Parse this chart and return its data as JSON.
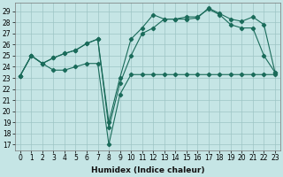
{
  "xlabel": "Humidex (Indice chaleur)",
  "background_color": "#c5e5e5",
  "grid_color": "#9dc5c5",
  "line_color": "#1a6b5a",
  "xlim": [
    -0.5,
    23.5
  ],
  "ylim": [
    16.5,
    29.8
  ],
  "yticks": [
    17,
    18,
    19,
    20,
    21,
    22,
    23,
    24,
    25,
    26,
    27,
    28,
    29
  ],
  "xticks": [
    0,
    1,
    2,
    3,
    4,
    5,
    6,
    7,
    8,
    9,
    10,
    11,
    12,
    13,
    14,
    15,
    16,
    17,
    18,
    19,
    20,
    21,
    22,
    23
  ],
  "line_min": [
    23.2,
    25.0,
    24.3,
    23.7,
    23.7,
    24.0,
    24.3,
    24.3,
    17.0,
    21.5,
    23.3,
    23.3,
    23.3,
    23.3,
    23.3,
    23.3,
    23.3,
    23.3,
    23.3,
    23.3,
    23.3,
    23.3,
    23.3,
    23.3
  ],
  "line_mid": [
    23.2,
    25.0,
    24.3,
    24.8,
    25.2,
    25.5,
    26.1,
    26.5,
    18.5,
    22.5,
    25.0,
    27.0,
    27.5,
    28.3,
    28.3,
    28.3,
    28.4,
    29.3,
    28.8,
    28.3,
    28.1,
    28.5,
    27.8,
    23.5
  ],
  "line_max": [
    23.2,
    25.0,
    24.3,
    24.8,
    25.2,
    25.5,
    26.1,
    26.5,
    19.0,
    23.0,
    26.5,
    27.5,
    28.7,
    28.3,
    28.3,
    28.5,
    28.5,
    29.2,
    28.7,
    27.8,
    27.5,
    27.5,
    25.0,
    23.5
  ]
}
